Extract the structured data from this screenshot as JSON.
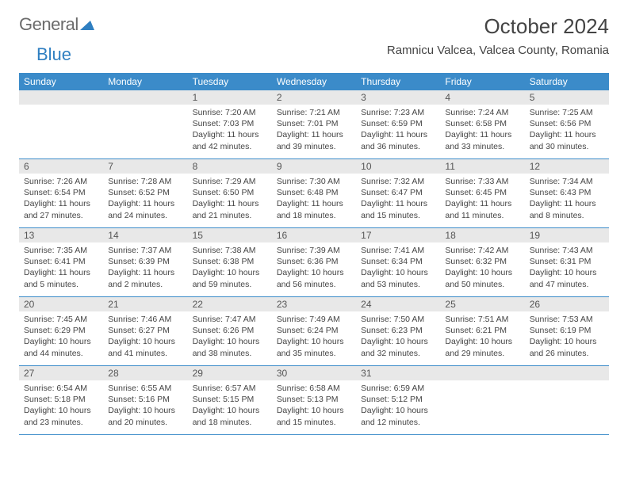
{
  "logo": {
    "part1": "General",
    "part2": "Blue"
  },
  "title": "October 2024",
  "location": "Ramnicu Valcea, Valcea County, Romania",
  "colors": {
    "header_bg": "#3b8bc9",
    "header_text": "#ffffff",
    "daynum_bg": "#e8e8e8",
    "border": "#3b8bc9",
    "logo_gray": "#6b6b6b",
    "logo_blue": "#2f7fc1"
  },
  "daysOfWeek": [
    "Sunday",
    "Monday",
    "Tuesday",
    "Wednesday",
    "Thursday",
    "Friday",
    "Saturday"
  ],
  "weeks": [
    [
      {
        "blank": true
      },
      {
        "blank": true
      },
      {
        "n": "1",
        "sr": "Sunrise: 7:20 AM",
        "ss": "Sunset: 7:03 PM",
        "dl": "Daylight: 11 hours and 42 minutes."
      },
      {
        "n": "2",
        "sr": "Sunrise: 7:21 AM",
        "ss": "Sunset: 7:01 PM",
        "dl": "Daylight: 11 hours and 39 minutes."
      },
      {
        "n": "3",
        "sr": "Sunrise: 7:23 AM",
        "ss": "Sunset: 6:59 PM",
        "dl": "Daylight: 11 hours and 36 minutes."
      },
      {
        "n": "4",
        "sr": "Sunrise: 7:24 AM",
        "ss": "Sunset: 6:58 PM",
        "dl": "Daylight: 11 hours and 33 minutes."
      },
      {
        "n": "5",
        "sr": "Sunrise: 7:25 AM",
        "ss": "Sunset: 6:56 PM",
        "dl": "Daylight: 11 hours and 30 minutes."
      }
    ],
    [
      {
        "n": "6",
        "sr": "Sunrise: 7:26 AM",
        "ss": "Sunset: 6:54 PM",
        "dl": "Daylight: 11 hours and 27 minutes."
      },
      {
        "n": "7",
        "sr": "Sunrise: 7:28 AM",
        "ss": "Sunset: 6:52 PM",
        "dl": "Daylight: 11 hours and 24 minutes."
      },
      {
        "n": "8",
        "sr": "Sunrise: 7:29 AM",
        "ss": "Sunset: 6:50 PM",
        "dl": "Daylight: 11 hours and 21 minutes."
      },
      {
        "n": "9",
        "sr": "Sunrise: 7:30 AM",
        "ss": "Sunset: 6:48 PM",
        "dl": "Daylight: 11 hours and 18 minutes."
      },
      {
        "n": "10",
        "sr": "Sunrise: 7:32 AM",
        "ss": "Sunset: 6:47 PM",
        "dl": "Daylight: 11 hours and 15 minutes."
      },
      {
        "n": "11",
        "sr": "Sunrise: 7:33 AM",
        "ss": "Sunset: 6:45 PM",
        "dl": "Daylight: 11 hours and 11 minutes."
      },
      {
        "n": "12",
        "sr": "Sunrise: 7:34 AM",
        "ss": "Sunset: 6:43 PM",
        "dl": "Daylight: 11 hours and 8 minutes."
      }
    ],
    [
      {
        "n": "13",
        "sr": "Sunrise: 7:35 AM",
        "ss": "Sunset: 6:41 PM",
        "dl": "Daylight: 11 hours and 5 minutes."
      },
      {
        "n": "14",
        "sr": "Sunrise: 7:37 AM",
        "ss": "Sunset: 6:39 PM",
        "dl": "Daylight: 11 hours and 2 minutes."
      },
      {
        "n": "15",
        "sr": "Sunrise: 7:38 AM",
        "ss": "Sunset: 6:38 PM",
        "dl": "Daylight: 10 hours and 59 minutes."
      },
      {
        "n": "16",
        "sr": "Sunrise: 7:39 AM",
        "ss": "Sunset: 6:36 PM",
        "dl": "Daylight: 10 hours and 56 minutes."
      },
      {
        "n": "17",
        "sr": "Sunrise: 7:41 AM",
        "ss": "Sunset: 6:34 PM",
        "dl": "Daylight: 10 hours and 53 minutes."
      },
      {
        "n": "18",
        "sr": "Sunrise: 7:42 AM",
        "ss": "Sunset: 6:32 PM",
        "dl": "Daylight: 10 hours and 50 minutes."
      },
      {
        "n": "19",
        "sr": "Sunrise: 7:43 AM",
        "ss": "Sunset: 6:31 PM",
        "dl": "Daylight: 10 hours and 47 minutes."
      }
    ],
    [
      {
        "n": "20",
        "sr": "Sunrise: 7:45 AM",
        "ss": "Sunset: 6:29 PM",
        "dl": "Daylight: 10 hours and 44 minutes."
      },
      {
        "n": "21",
        "sr": "Sunrise: 7:46 AM",
        "ss": "Sunset: 6:27 PM",
        "dl": "Daylight: 10 hours and 41 minutes."
      },
      {
        "n": "22",
        "sr": "Sunrise: 7:47 AM",
        "ss": "Sunset: 6:26 PM",
        "dl": "Daylight: 10 hours and 38 minutes."
      },
      {
        "n": "23",
        "sr": "Sunrise: 7:49 AM",
        "ss": "Sunset: 6:24 PM",
        "dl": "Daylight: 10 hours and 35 minutes."
      },
      {
        "n": "24",
        "sr": "Sunrise: 7:50 AM",
        "ss": "Sunset: 6:23 PM",
        "dl": "Daylight: 10 hours and 32 minutes."
      },
      {
        "n": "25",
        "sr": "Sunrise: 7:51 AM",
        "ss": "Sunset: 6:21 PM",
        "dl": "Daylight: 10 hours and 29 minutes."
      },
      {
        "n": "26",
        "sr": "Sunrise: 7:53 AM",
        "ss": "Sunset: 6:19 PM",
        "dl": "Daylight: 10 hours and 26 minutes."
      }
    ],
    [
      {
        "n": "27",
        "sr": "Sunrise: 6:54 AM",
        "ss": "Sunset: 5:18 PM",
        "dl": "Daylight: 10 hours and 23 minutes."
      },
      {
        "n": "28",
        "sr": "Sunrise: 6:55 AM",
        "ss": "Sunset: 5:16 PM",
        "dl": "Daylight: 10 hours and 20 minutes."
      },
      {
        "n": "29",
        "sr": "Sunrise: 6:57 AM",
        "ss": "Sunset: 5:15 PM",
        "dl": "Daylight: 10 hours and 18 minutes."
      },
      {
        "n": "30",
        "sr": "Sunrise: 6:58 AM",
        "ss": "Sunset: 5:13 PM",
        "dl": "Daylight: 10 hours and 15 minutes."
      },
      {
        "n": "31",
        "sr": "Sunrise: 6:59 AM",
        "ss": "Sunset: 5:12 PM",
        "dl": "Daylight: 10 hours and 12 minutes."
      },
      {
        "blank": true
      },
      {
        "blank": true
      }
    ]
  ]
}
